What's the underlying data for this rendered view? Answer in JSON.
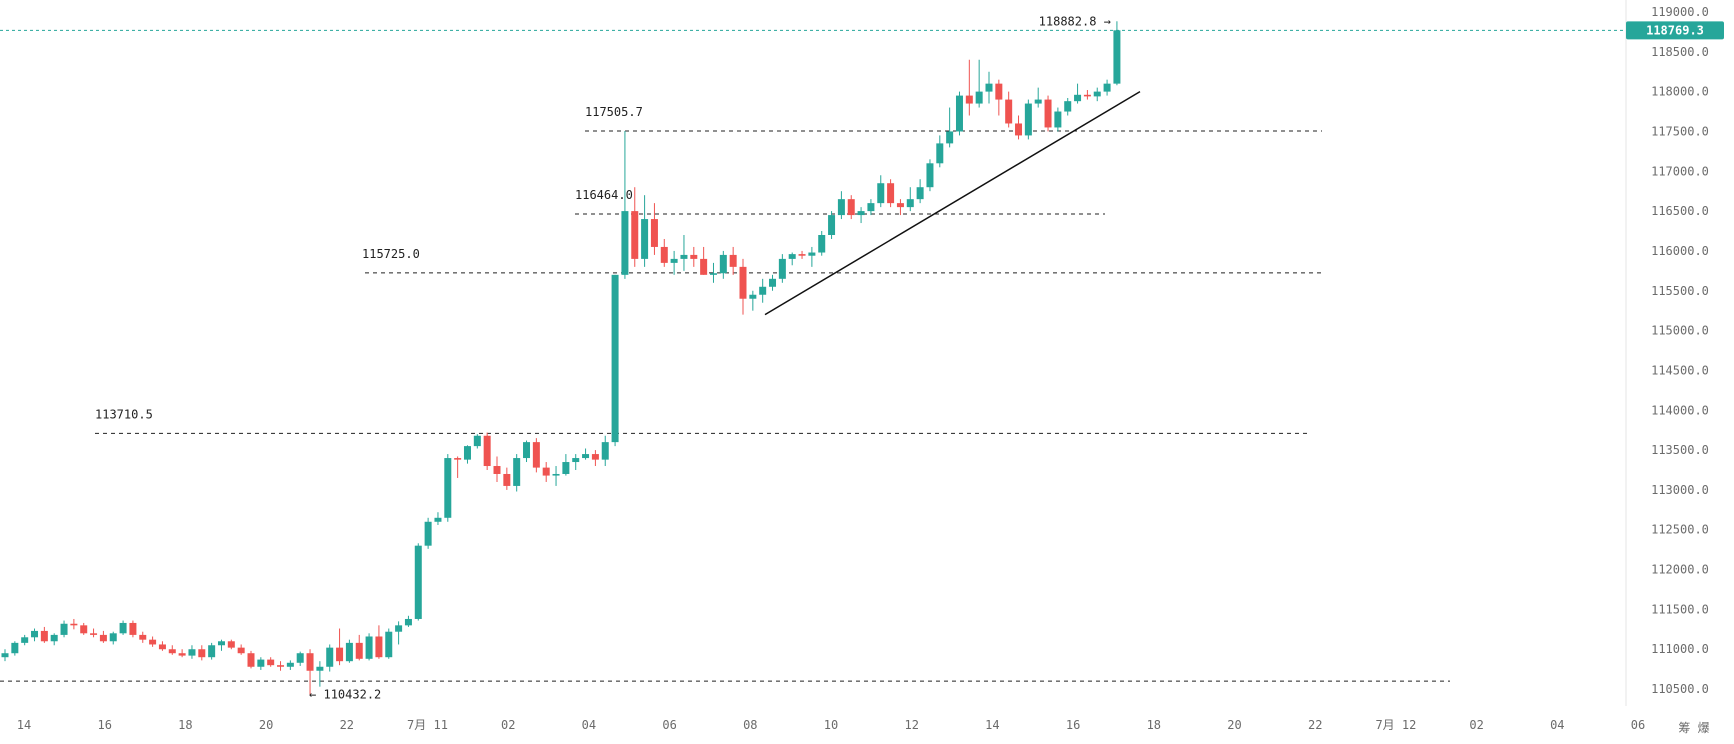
{
  "chart_data": {
    "type": "candlestick",
    "title": "",
    "xlabel": "",
    "ylabel": "",
    "ylim": [
      110300,
      119150
    ],
    "y_ticks": [
      110500.0,
      111000.0,
      111500.0,
      112000.0,
      112500.0,
      113000.0,
      113500.0,
      114000.0,
      114500.0,
      115000.0,
      115500.0,
      116000.0,
      116500.0,
      117000.0,
      117500.0,
      118000.0,
      118500.0,
      119000.0
    ],
    "y_tick_labels": [
      "110500.0",
      "111000.0",
      "111500.0",
      "112000.0",
      "112500.0",
      "113000.0",
      "113500.0",
      "114000.0",
      "114500.0",
      "115000.0",
      "115500.0",
      "116000.0",
      "116500.0",
      "117000.0",
      "117500.0",
      "118000.0",
      "118500.0",
      "119000.0"
    ],
    "x_tick_labels": [
      "14",
      "16",
      "18",
      "20",
      "22",
      "7月 11",
      "02",
      "04",
      "06",
      "08",
      "10",
      "12",
      "14",
      "16",
      "18",
      "20",
      "22",
      "7月 12",
      "02",
      "04",
      "06"
    ],
    "candle_interval_hours": 0.25,
    "colors": {
      "up": "#26a69a",
      "down": "#ef5350",
      "last_price": "#26a69a",
      "level_line": "#222222",
      "trend_line": "#111111"
    },
    "current_price": 118769.3,
    "current_price_label": "118769.3",
    "high_marker": {
      "value": 118882.8,
      "label": "118882.8",
      "arrow": "→"
    },
    "low_marker": {
      "value": 110432.2,
      "label": "110432.2",
      "arrow": "←"
    },
    "levels": [
      {
        "value": 117505.7,
        "label": "117505.7"
      },
      {
        "value": 116464.0,
        "label": "116464.0"
      },
      {
        "value": 115725.0,
        "label": "115725.0"
      },
      {
        "value": 113710.5,
        "label": "113710.5"
      },
      {
        "value": 110600.0,
        "label": ""
      }
    ],
    "trend_line": {
      "from": 115200,
      "to": 118000
    },
    "corner_label": "筹 爆",
    "candles": [
      {
        "o": 110900,
        "h": 111000,
        "l": 110850,
        "c": 110950
      },
      {
        "o": 110950,
        "h": 111100,
        "l": 110920,
        "c": 111080
      },
      {
        "o": 111080,
        "h": 111180,
        "l": 111050,
        "c": 111150
      },
      {
        "o": 111150,
        "h": 111260,
        "l": 111100,
        "c": 111230
      },
      {
        "o": 111230,
        "h": 111280,
        "l": 111080,
        "c": 111100
      },
      {
        "o": 111100,
        "h": 111200,
        "l": 111050,
        "c": 111180
      },
      {
        "o": 111180,
        "h": 111360,
        "l": 111150,
        "c": 111320
      },
      {
        "o": 111320,
        "h": 111380,
        "l": 111250,
        "c": 111300
      },
      {
        "o": 111300,
        "h": 111330,
        "l": 111180,
        "c": 111200
      },
      {
        "o": 111200,
        "h": 111260,
        "l": 111150,
        "c": 111180
      },
      {
        "o": 111180,
        "h": 111230,
        "l": 111080,
        "c": 111100
      },
      {
        "o": 111100,
        "h": 111220,
        "l": 111060,
        "c": 111200
      },
      {
        "o": 111200,
        "h": 111360,
        "l": 111180,
        "c": 111330
      },
      {
        "o": 111330,
        "h": 111360,
        "l": 111150,
        "c": 111180
      },
      {
        "o": 111180,
        "h": 111220,
        "l": 111080,
        "c": 111120
      },
      {
        "o": 111120,
        "h": 111160,
        "l": 111030,
        "c": 111060
      },
      {
        "o": 111060,
        "h": 111100,
        "l": 110980,
        "c": 111000
      },
      {
        "o": 111000,
        "h": 111050,
        "l": 110930,
        "c": 110950
      },
      {
        "o": 110950,
        "h": 111000,
        "l": 110900,
        "c": 110920
      },
      {
        "o": 110920,
        "h": 111050,
        "l": 110880,
        "c": 111000
      },
      {
        "o": 111000,
        "h": 111050,
        "l": 110860,
        "c": 110900
      },
      {
        "o": 110900,
        "h": 111080,
        "l": 110870,
        "c": 111050
      },
      {
        "o": 111050,
        "h": 111120,
        "l": 110980,
        "c": 111100
      },
      {
        "o": 111100,
        "h": 111120,
        "l": 111000,
        "c": 111020
      },
      {
        "o": 111020,
        "h": 111060,
        "l": 110930,
        "c": 110950
      },
      {
        "o": 110950,
        "h": 110980,
        "l": 110760,
        "c": 110780
      },
      {
        "o": 110780,
        "h": 110900,
        "l": 110740,
        "c": 110870
      },
      {
        "o": 110870,
        "h": 110900,
        "l": 110780,
        "c": 110800
      },
      {
        "o": 110800,
        "h": 110850,
        "l": 110730,
        "c": 110780
      },
      {
        "o": 110780,
        "h": 110860,
        "l": 110740,
        "c": 110830
      },
      {
        "o": 110830,
        "h": 110970,
        "l": 110790,
        "c": 110950
      },
      {
        "o": 110950,
        "h": 111000,
        "l": 110432,
        "c": 110730
      },
      {
        "o": 110730,
        "h": 110850,
        "l": 110530,
        "c": 110780
      },
      {
        "o": 110780,
        "h": 111060,
        "l": 110720,
        "c": 111020
      },
      {
        "o": 111020,
        "h": 111260,
        "l": 110800,
        "c": 110850
      },
      {
        "o": 110850,
        "h": 111120,
        "l": 110830,
        "c": 111080
      },
      {
        "o": 111080,
        "h": 111180,
        "l": 110860,
        "c": 110880
      },
      {
        "o": 110880,
        "h": 111200,
        "l": 110860,
        "c": 111160
      },
      {
        "o": 111160,
        "h": 111300,
        "l": 110880,
        "c": 110900
      },
      {
        "o": 110900,
        "h": 111260,
        "l": 110880,
        "c": 111220
      },
      {
        "o": 111220,
        "h": 111350,
        "l": 111060,
        "c": 111300
      },
      {
        "o": 111300,
        "h": 111420,
        "l": 111280,
        "c": 111380
      },
      {
        "o": 111380,
        "h": 112330,
        "l": 111360,
        "c": 112300
      },
      {
        "o": 112300,
        "h": 112650,
        "l": 112260,
        "c": 112600
      },
      {
        "o": 112600,
        "h": 112720,
        "l": 112560,
        "c": 112650
      },
      {
        "o": 112650,
        "h": 113450,
        "l": 112600,
        "c": 113400
      },
      {
        "o": 113400,
        "h": 113420,
        "l": 113150,
        "c": 113380
      },
      {
        "o": 113380,
        "h": 113560,
        "l": 113330,
        "c": 113550
      },
      {
        "o": 113550,
        "h": 113700,
        "l": 113520,
        "c": 113680
      },
      {
        "o": 113680,
        "h": 113720,
        "l": 113250,
        "c": 113300
      },
      {
        "o": 113300,
        "h": 113420,
        "l": 113100,
        "c": 113200
      },
      {
        "o": 113200,
        "h": 113280,
        "l": 113000,
        "c": 113050
      },
      {
        "o": 113050,
        "h": 113450,
        "l": 112980,
        "c": 113400
      },
      {
        "o": 113400,
        "h": 113620,
        "l": 113350,
        "c": 113600
      },
      {
        "o": 113600,
        "h": 113650,
        "l": 113220,
        "c": 113280
      },
      {
        "o": 113280,
        "h": 113350,
        "l": 113100,
        "c": 113180
      },
      {
        "o": 113180,
        "h": 113300,
        "l": 113050,
        "c": 113200
      },
      {
        "o": 113200,
        "h": 113450,
        "l": 113180,
        "c": 113350
      },
      {
        "o": 113350,
        "h": 113450,
        "l": 113250,
        "c": 113400
      },
      {
        "o": 113400,
        "h": 113520,
        "l": 113380,
        "c": 113450
      },
      {
        "o": 113450,
        "h": 113500,
        "l": 113300,
        "c": 113380
      },
      {
        "o": 113380,
        "h": 113680,
        "l": 113300,
        "c": 113600
      },
      {
        "o": 113600,
        "h": 115700,
        "l": 113550,
        "c": 115700
      },
      {
        "o": 115700,
        "h": 117505,
        "l": 115650,
        "c": 116500
      },
      {
        "o": 116500,
        "h": 116800,
        "l": 115800,
        "c": 115900
      },
      {
        "o": 115900,
        "h": 116700,
        "l": 115800,
        "c": 116400
      },
      {
        "o": 116400,
        "h": 116600,
        "l": 115950,
        "c": 116050
      },
      {
        "o": 116050,
        "h": 116150,
        "l": 115800,
        "c": 115850
      },
      {
        "o": 115850,
        "h": 116000,
        "l": 115700,
        "c": 115900
      },
      {
        "o": 115900,
        "h": 116200,
        "l": 115750,
        "c": 115950
      },
      {
        "o": 115950,
        "h": 116050,
        "l": 115800,
        "c": 115900
      },
      {
        "o": 115900,
        "h": 116050,
        "l": 115700,
        "c": 115700
      },
      {
        "o": 115700,
        "h": 115850,
        "l": 115600,
        "c": 115720
      },
      {
        "o": 115720,
        "h": 116000,
        "l": 115650,
        "c": 115950
      },
      {
        "o": 115950,
        "h": 116050,
        "l": 115700,
        "c": 115800
      },
      {
        "o": 115800,
        "h": 115900,
        "l": 115200,
        "c": 115400
      },
      {
        "o": 115400,
        "h": 115500,
        "l": 115250,
        "c": 115450
      },
      {
        "o": 115450,
        "h": 115650,
        "l": 115350,
        "c": 115550
      },
      {
        "o": 115550,
        "h": 115700,
        "l": 115500,
        "c": 115650
      },
      {
        "o": 115650,
        "h": 115960,
        "l": 115600,
        "c": 115900
      },
      {
        "o": 115900,
        "h": 115980,
        "l": 115820,
        "c": 115960
      },
      {
        "o": 115960,
        "h": 116000,
        "l": 115900,
        "c": 115940
      },
      {
        "o": 115940,
        "h": 116050,
        "l": 115800,
        "c": 115980
      },
      {
        "o": 115980,
        "h": 116250,
        "l": 115940,
        "c": 116200
      },
      {
        "o": 116200,
        "h": 116500,
        "l": 116150,
        "c": 116450
      },
      {
        "o": 116450,
        "h": 116750,
        "l": 116400,
        "c": 116650
      },
      {
        "o": 116650,
        "h": 116700,
        "l": 116400,
        "c": 116450
      },
      {
        "o": 116450,
        "h": 116550,
        "l": 116350,
        "c": 116500
      },
      {
        "o": 116500,
        "h": 116650,
        "l": 116450,
        "c": 116600
      },
      {
        "o": 116600,
        "h": 116950,
        "l": 116550,
        "c": 116850
      },
      {
        "o": 116850,
        "h": 116900,
        "l": 116550,
        "c": 116600
      },
      {
        "o": 116600,
        "h": 116650,
        "l": 116450,
        "c": 116550
      },
      {
        "o": 116550,
        "h": 116800,
        "l": 116500,
        "c": 116650
      },
      {
        "o": 116650,
        "h": 116900,
        "l": 116600,
        "c": 116800
      },
      {
        "o": 116800,
        "h": 117150,
        "l": 116750,
        "c": 117100
      },
      {
        "o": 117100,
        "h": 117450,
        "l": 117050,
        "c": 117350
      },
      {
        "o": 117350,
        "h": 117800,
        "l": 117300,
        "c": 117500
      },
      {
        "o": 117500,
        "h": 118000,
        "l": 117450,
        "c": 117950
      },
      {
        "o": 117950,
        "h": 118400,
        "l": 117700,
        "c": 117850
      },
      {
        "o": 117850,
        "h": 118400,
        "l": 117800,
        "c": 118000
      },
      {
        "o": 118000,
        "h": 118250,
        "l": 117850,
        "c": 118100
      },
      {
        "o": 118100,
        "h": 118150,
        "l": 117700,
        "c": 117900
      },
      {
        "o": 117900,
        "h": 118000,
        "l": 117550,
        "c": 117600
      },
      {
        "o": 117600,
        "h": 117700,
        "l": 117400,
        "c": 117450
      },
      {
        "o": 117450,
        "h": 117900,
        "l": 117400,
        "c": 117850
      },
      {
        "o": 117850,
        "h": 118050,
        "l": 117800,
        "c": 117900
      },
      {
        "o": 117900,
        "h": 117950,
        "l": 117500,
        "c": 117550
      },
      {
        "o": 117550,
        "h": 117800,
        "l": 117500,
        "c": 117750
      },
      {
        "o": 117750,
        "h": 117920,
        "l": 117700,
        "c": 117880
      },
      {
        "o": 117880,
        "h": 118100,
        "l": 117850,
        "c": 117960
      },
      {
        "o": 117960,
        "h": 118020,
        "l": 117900,
        "c": 117940
      },
      {
        "o": 117940,
        "h": 118050,
        "l": 117880,
        "c": 118000
      },
      {
        "o": 118000,
        "h": 118150,
        "l": 117950,
        "c": 118100
      },
      {
        "o": 118100,
        "h": 118882.8,
        "l": 118080,
        "c": 118769.3
      }
    ]
  }
}
